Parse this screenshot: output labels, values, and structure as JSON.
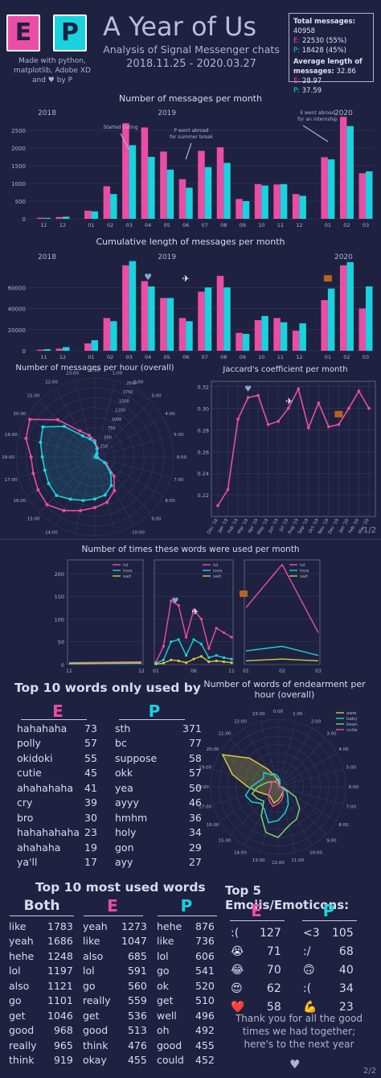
{
  "header": {
    "logo_e": "E",
    "logo_p": "P",
    "title": "A Year of Us",
    "subtitle": "Analysis of Signal Messenger chats",
    "dates": "2018.11.25 - 2020.03.27",
    "made_with": "Made with python, matplotlib, Adobe XD and ♥ by P"
  },
  "stats": {
    "total_label": "Total messages:",
    "total_value": "40958",
    "e_label": "E:",
    "e_value": "22530 (55%)",
    "p_label": "P:",
    "p_value": "18428 (45%)",
    "avg_label": "Average length of messages:",
    "avg_value": "32.86",
    "e_avg": "28.97",
    "p_avg": "37.59"
  },
  "colors": {
    "e": "#ec4da4",
    "p": "#18d3dd",
    "bg": "#1e2240",
    "yellow": "#d7c83a"
  },
  "chart_data": [
    {
      "type": "bar",
      "title": "Number of messages per month",
      "categories": [
        "11",
        "12",
        "01",
        "02",
        "03",
        "04",
        "05",
        "06",
        "07",
        "08",
        "09",
        "10",
        "11",
        "12",
        "01",
        "02",
        "03"
      ],
      "year_labels": [
        "2018",
        "2019",
        "2020"
      ],
      "ylim": [
        0,
        3000
      ],
      "yticks": [
        0,
        500,
        1000,
        1500,
        2000,
        2500
      ],
      "series": [
        {
          "name": "E",
          "values": [
            30,
            50,
            230,
            920,
            2700,
            2580,
            1900,
            1120,
            1920,
            2020,
            560,
            980,
            970,
            700,
            1740,
            2880,
            1290
          ]
        },
        {
          "name": "P",
          "values": [
            25,
            60,
            210,
            700,
            2080,
            1750,
            1390,
            880,
            1460,
            1580,
            500,
            940,
            980,
            650,
            1680,
            2620,
            1340
          ]
        }
      ],
      "annotations": [
        "Started dating",
        "P went abroad for summer break",
        "E went abroad for an internship"
      ]
    },
    {
      "type": "bar",
      "title": "Cumulative length of messages per month",
      "categories": [
        "11",
        "12",
        "01",
        "02",
        "03",
        "04",
        "05",
        "06",
        "07",
        "08",
        "09",
        "10",
        "11",
        "12",
        "01",
        "02",
        "03"
      ],
      "year_labels": [
        "2018",
        "2019",
        "2020"
      ],
      "ylim": [
        0,
        90000
      ],
      "yticks": [
        0,
        20000,
        40000,
        60000
      ],
      "series": [
        {
          "name": "E",
          "values": [
            1000,
            2000,
            7000,
            31000,
            81000,
            66000,
            50000,
            31000,
            56000,
            71000,
            17000,
            29000,
            31000,
            19000,
            48000,
            81000,
            40000
          ]
        },
        {
          "name": "P",
          "values": [
            1500,
            3500,
            10000,
            28000,
            85000,
            61000,
            50000,
            28000,
            60000,
            60000,
            16000,
            33000,
            27000,
            26000,
            59000,
            84000,
            61000
          ]
        }
      ]
    },
    {
      "type": "polar-line",
      "title": "Number of messages per hour (overall)",
      "hours": [
        "0:00",
        "1:00",
        "2:00",
        "3:00",
        "4:00",
        "5:00",
        "6:00",
        "7:00",
        "8:00",
        "9:00",
        "10:00",
        "11:00",
        "12:00",
        "13:00",
        "14:00",
        "15:00",
        "16:00",
        "17:00",
        "18:00",
        "19:00",
        "20:00",
        "21:00",
        "22:00",
        "23:00"
      ],
      "rticks": [
        "250",
        "500",
        "750",
        "1000",
        "1250",
        "1500",
        "1750",
        "2000"
      ],
      "series": [
        {
          "name": "E",
          "values": [
            430,
            250,
            120,
            60,
            20,
            10,
            40,
            80,
            350,
            720,
            1040,
            1250,
            1350,
            1480,
            1650,
            1800,
            1750,
            1700,
            1700,
            1900,
            2000,
            1400,
            800,
            600
          ]
        },
        {
          "name": "P",
          "values": [
            380,
            220,
            100,
            50,
            20,
            10,
            35,
            70,
            300,
            600,
            880,
            1050,
            1120,
            1200,
            1300,
            1450,
            1420,
            1380,
            1400,
            1500,
            1600,
            1150,
            650,
            500
          ]
        }
      ]
    },
    {
      "type": "line",
      "title": "Jaccard's coefficient per month",
      "categories": [
        "Dec '18",
        "Jan '19",
        "Feb '19",
        "Mar '19",
        "Apr '19",
        "May '19",
        "Jun '19",
        "Jul '19",
        "Aug '19",
        "Sep '19",
        "Oct '19",
        "Nov '19",
        "Dec '19",
        "Jan '20",
        "Feb '20",
        "Mar '20"
      ],
      "values": [
        0.21,
        0.225,
        0.29,
        0.31,
        0.312,
        0.285,
        0.288,
        0.3,
        0.318,
        0.282,
        0.305,
        0.283,
        0.285,
        0.3,
        0.316,
        0.3
      ],
      "ylim": [
        0.2,
        0.325
      ],
      "yticks": [
        "0.22",
        "0.24",
        "0.26",
        "0.28",
        "0.30",
        "0.32"
      ]
    },
    {
      "type": "line",
      "title": "Number of times these words were used per month",
      "legend": [
        "lol",
        "love",
        "sad"
      ],
      "ylim": [
        0,
        230
      ],
      "yticks": [
        0,
        50,
        100,
        150,
        200
      ],
      "panel_x_labels": [
        [
          "11",
          "12"
        ],
        [
          "01",
          "06",
          "11"
        ],
        [
          "01",
          "02",
          "03"
        ]
      ],
      "series": [
        {
          "name": "lol",
          "panels": [
            [
              4,
              6
            ],
            [
              5,
              40,
              140,
              130,
              60,
              120,
              100,
              35,
              80,
              70,
              60
            ],
            [
              125,
              220,
              70
            ]
          ]
        },
        {
          "name": "love",
          "panels": [
            [
              3,
              4
            ],
            [
              3,
              10,
              50,
              55,
              20,
              55,
              45,
              15,
              20,
              15,
              12
            ],
            [
              30,
              40,
              20
            ]
          ]
        },
        {
          "name": "sad",
          "panels": [
            [
              2,
              3
            ],
            [
              1,
              3,
              10,
              8,
              4,
              12,
              18,
              6,
              8,
              6,
              4
            ],
            [
              8,
              12,
              8
            ]
          ]
        }
      ]
    },
    {
      "type": "polar-line",
      "title": "Number of words of endearment per hour (overall)",
      "legend": [
        "aww",
        "baby",
        "bean",
        "cutie"
      ],
      "hours": [
        "0:00",
        "1:00",
        "2:00",
        "3:00",
        "4:00",
        "5:00",
        "6:00",
        "7:00",
        "8:00",
        "9:00",
        "10:00",
        "11:00",
        "12:00",
        "13:00",
        "14:00",
        "15:00",
        "16:00",
        "17:00",
        "18:00",
        "19:00",
        "20:00",
        "21:00",
        "22:00",
        "23:00"
      ]
    }
  ],
  "words_only": {
    "title": "Top 10 words only used by",
    "e_header": "E",
    "p_header": "P",
    "e": [
      [
        "hahahaha",
        "73"
      ],
      [
        "polly",
        "57"
      ],
      [
        "okidoki",
        "55"
      ],
      [
        "cutie",
        "45"
      ],
      [
        "ahahahaha",
        "41"
      ],
      [
        "cry",
        "39"
      ],
      [
        "bro",
        "30"
      ],
      [
        "hahahahaha",
        "23"
      ],
      [
        "ahahaha",
        "19"
      ],
      [
        "ya'll",
        "17"
      ]
    ],
    "p": [
      [
        "sth",
        "371"
      ],
      [
        "bc",
        "77"
      ],
      [
        "suppose",
        "58"
      ],
      [
        "okk",
        "57"
      ],
      [
        "yea",
        "50"
      ],
      [
        "ayyy",
        "46"
      ],
      [
        "hmhm",
        "36"
      ],
      [
        "holy",
        "34"
      ],
      [
        "gon",
        "29"
      ],
      [
        "ayy",
        "27"
      ]
    ]
  },
  "most_used": {
    "title": "Top 10 most used words",
    "both_header": "Both",
    "e_header": "E",
    "p_header": "P",
    "both": [
      [
        "like",
        "1783"
      ],
      [
        "yeah",
        "1686"
      ],
      [
        "hehe",
        "1248"
      ],
      [
        "lol",
        "1197"
      ],
      [
        "also",
        "1121"
      ],
      [
        "go",
        "1101"
      ],
      [
        "get",
        "1046"
      ],
      [
        "good",
        "968"
      ],
      [
        "really",
        "965"
      ],
      [
        "think",
        "919"
      ]
    ],
    "e": [
      [
        "yeah",
        "1273"
      ],
      [
        "like",
        "1047"
      ],
      [
        "also",
        "685"
      ],
      [
        "lol",
        "591"
      ],
      [
        "go",
        "560"
      ],
      [
        "really",
        "559"
      ],
      [
        "get",
        "536"
      ],
      [
        "good",
        "513"
      ],
      [
        "think",
        "476"
      ],
      [
        "okay",
        "455"
      ]
    ],
    "p": [
      [
        "hehe",
        "876"
      ],
      [
        "like",
        "736"
      ],
      [
        "lol",
        "606"
      ],
      [
        "go",
        "541"
      ],
      [
        "ok",
        "520"
      ],
      [
        "get",
        "510"
      ],
      [
        "well",
        "496"
      ],
      [
        "oh",
        "492"
      ],
      [
        "good",
        "455"
      ],
      [
        "could",
        "452"
      ]
    ]
  },
  "emojis": {
    "title": "Top 5 Emojis/Emoticons:",
    "e_header": "E",
    "p_header": "P",
    "e": [
      [
        ":(",
        "127"
      ],
      [
        "😭",
        "71"
      ],
      [
        "😂",
        "70"
      ],
      [
        "😍",
        "62"
      ],
      [
        "❤️",
        "58"
      ]
    ],
    "p": [
      [
        "<3",
        "105"
      ],
      [
        ":/",
        "68"
      ],
      [
        "🙃",
        "40"
      ],
      [
        ":(",
        "34"
      ],
      [
        "💪",
        "23"
      ]
    ]
  },
  "closing": "Thank you for all the good times we had together; here's to the next year",
  "pages": {
    "p1": "1/2",
    "p2": "2/2"
  }
}
